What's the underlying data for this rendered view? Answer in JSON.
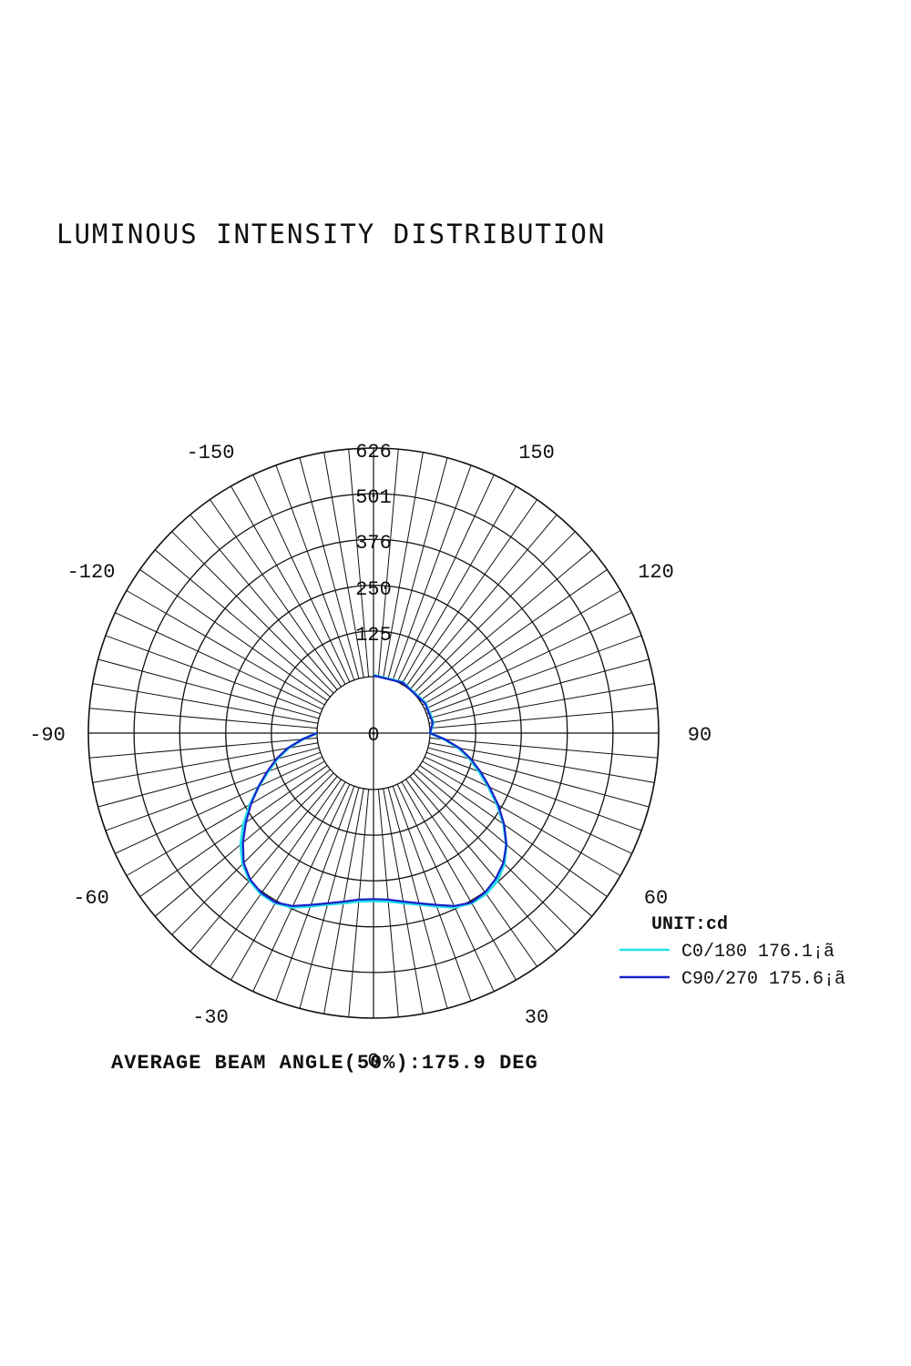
{
  "chart_data": {
    "type": "polar",
    "title": "LUMINOUS INTENSITY DISTRIBUTION",
    "unit_label": "UNIT:cd",
    "radial_ticks": [
      "0",
      "125",
      "250",
      "376",
      "501",
      "626"
    ],
    "radial_max": 626,
    "angle_labels": [
      {
        "text": "0",
        "angle": 0
      },
      {
        "text": "30",
        "angle": 30
      },
      {
        "text": "60",
        "angle": 60
      },
      {
        "text": "90",
        "angle": 90
      },
      {
        "text": "120",
        "angle": 120
      },
      {
        "text": "150",
        "angle": 150
      },
      {
        "text": "-30",
        "angle": -30
      },
      {
        "text": "-60",
        "angle": -60
      },
      {
        "text": "-90",
        "angle": -90
      },
      {
        "text": "-120",
        "angle": -120
      },
      {
        "text": "-150",
        "angle": -150
      }
    ],
    "grid": true,
    "legend_position": "bottom-right",
    "series": [
      {
        "name": "C0/180 176.1¡ã",
        "color": "#22e0e8",
        "points": [
          [
            -90,
            0
          ],
          [
            -85,
            40
          ],
          [
            -80,
            82
          ],
          [
            -75,
            118
          ],
          [
            -70,
            152
          ],
          [
            -65,
            192
          ],
          [
            -60,
            236
          ],
          [
            -55,
            280
          ],
          [
            -50,
            320
          ],
          [
            -45,
            352
          ],
          [
            -40,
            373
          ],
          [
            -35,
            383
          ],
          [
            -30,
            383
          ],
          [
            -25,
            372
          ],
          [
            -20,
            350
          ],
          [
            -15,
            331
          ],
          [
            -10,
            318
          ],
          [
            -5,
            308
          ],
          [
            0,
            305
          ],
          [
            5,
            308
          ],
          [
            10,
            318
          ],
          [
            15,
            331
          ],
          [
            20,
            350
          ],
          [
            25,
            372
          ],
          [
            30,
            383
          ],
          [
            35,
            383
          ],
          [
            40,
            373
          ],
          [
            45,
            352
          ],
          [
            50,
            320
          ],
          [
            55,
            280
          ],
          [
            60,
            236
          ],
          [
            65,
            192
          ],
          [
            70,
            152
          ],
          [
            75,
            118
          ],
          [
            80,
            82
          ],
          [
            85,
            40
          ],
          [
            90,
            0
          ],
          [
            95,
            5
          ],
          [
            100,
            12
          ],
          [
            120,
            10
          ],
          [
            150,
            6
          ],
          [
            180,
            4
          ]
        ]
      },
      {
        "name": "C90/270 175.6¡ã",
        "color": "#1a22c8",
        "points": [
          [
            -90,
            0
          ],
          [
            -85,
            41
          ],
          [
            -80,
            84
          ],
          [
            -75,
            121
          ],
          [
            -70,
            156
          ],
          [
            -65,
            193
          ],
          [
            -60,
            232
          ],
          [
            -55,
            272
          ],
          [
            -50,
            312
          ],
          [
            -45,
            348
          ],
          [
            -40,
            370
          ],
          [
            -35,
            380
          ],
          [
            -30,
            381
          ],
          [
            -25,
            368
          ],
          [
            -20,
            346
          ],
          [
            -15,
            328
          ],
          [
            -10,
            314
          ],
          [
            -5,
            303
          ],
          [
            0,
            300
          ],
          [
            5,
            303
          ],
          [
            10,
            314
          ],
          [
            15,
            328
          ],
          [
            20,
            346
          ],
          [
            25,
            368
          ],
          [
            30,
            381
          ],
          [
            35,
            378
          ],
          [
            40,
            366
          ],
          [
            45,
            348
          ],
          [
            50,
            320
          ],
          [
            55,
            282
          ],
          [
            60,
            240
          ],
          [
            65,
            196
          ],
          [
            70,
            158
          ],
          [
            75,
            122
          ],
          [
            80,
            86
          ],
          [
            85,
            42
          ],
          [
            90,
            0
          ],
          [
            95,
            4
          ],
          [
            100,
            10
          ],
          [
            120,
            8
          ],
          [
            150,
            5
          ],
          [
            180,
            3
          ]
        ]
      }
    ],
    "annotation": "AVERAGE BEAM ANGLE(50%):175.9 DEG"
  }
}
